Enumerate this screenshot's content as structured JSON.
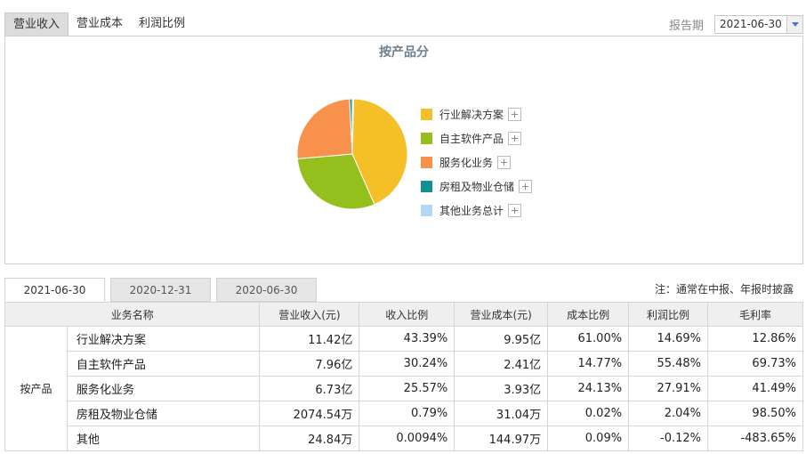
{
  "top_tabs": [
    "营业收入",
    "营业成本",
    "利润比例"
  ],
  "report": {
    "label": "报告期",
    "value": "2021-06-30"
  },
  "chart_data": {
    "type": "pie",
    "title": "按产品分",
    "categories": [
      "行业解决方案",
      "自主软件产品",
      "服务化业务",
      "房租及物业仓储",
      "其他业务总计"
    ],
    "values": [
      43.39,
      30.24,
      25.57,
      0.79,
      0.0094
    ],
    "colors": [
      "#f5c027",
      "#95bf1c",
      "#f8914c",
      "#159090",
      "#b3d7f5"
    ]
  },
  "date_tabs": [
    "2021-06-30",
    "2020-12-31",
    "2020-06-30"
  ],
  "note": "注：通常在中报、年报时披露",
  "table": {
    "headers": [
      "业务名称",
      "营业收入(元)",
      "收入比例",
      "营业成本(元)",
      "成本比例",
      "利润比例",
      "毛利率"
    ],
    "group_label": "按产品",
    "rows": [
      [
        "行业解决方案",
        "11.42亿",
        "43.39%",
        "9.95亿",
        "61.00%",
        "14.69%",
        "12.86%"
      ],
      [
        "自主软件产品",
        "7.96亿",
        "30.24%",
        "2.41亿",
        "14.77%",
        "55.48%",
        "69.73%"
      ],
      [
        "服务化业务",
        "6.73亿",
        "25.57%",
        "3.93亿",
        "24.13%",
        "27.91%",
        "41.49%"
      ],
      [
        "房租及物业仓储",
        "2074.54万",
        "0.79%",
        "31.04万",
        "0.02%",
        "2.04%",
        "98.50%"
      ],
      [
        "其他",
        "24.84万",
        "0.0094%",
        "144.97万",
        "0.09%",
        "-0.12%",
        "-483.65%"
      ]
    ]
  }
}
